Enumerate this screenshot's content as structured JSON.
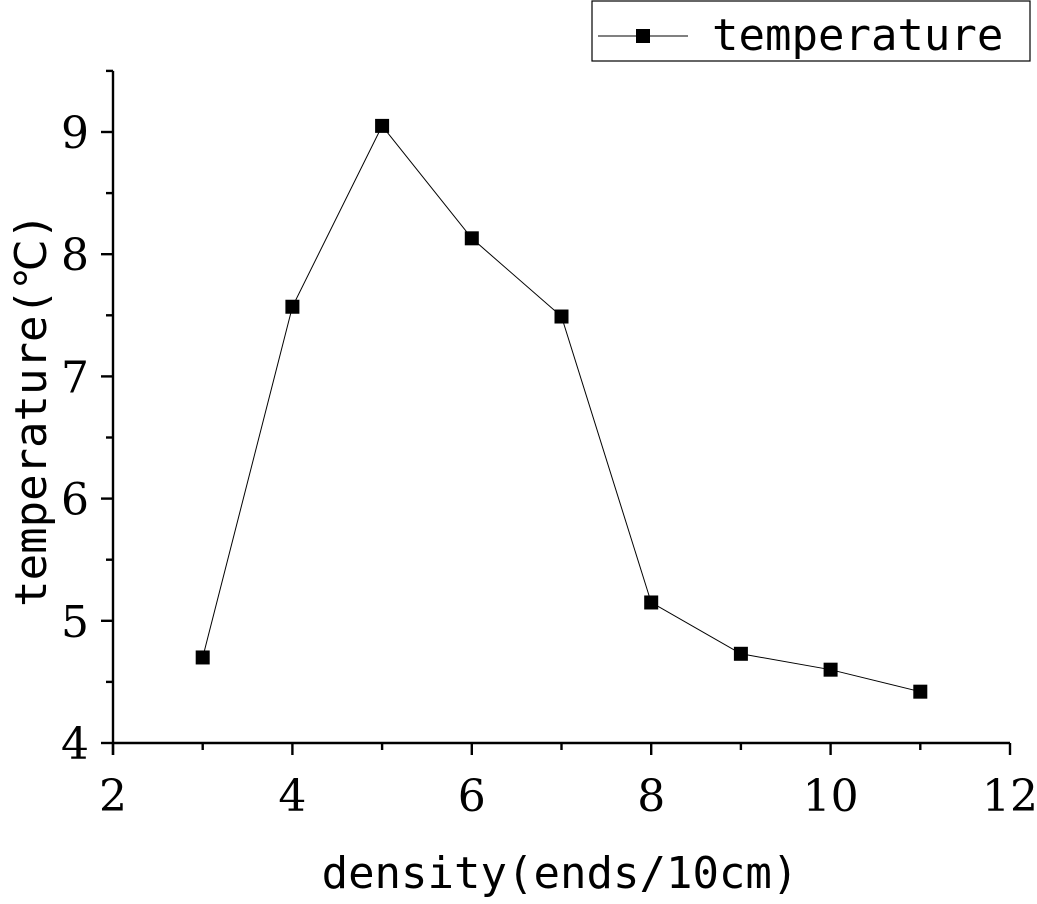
{
  "chart_data": {
    "type": "line",
    "title": "",
    "xlabel": "density(ends/10cm)",
    "ylabel": "temperature(℃)",
    "xlim": [
      2,
      12
    ],
    "ylim": [
      4,
      9.5
    ],
    "x_ticks": [
      2,
      4,
      6,
      8,
      10,
      12
    ],
    "y_ticks": [
      4,
      5,
      6,
      7,
      8,
      9
    ],
    "x_minor_ticks": [
      3,
      5,
      7,
      9,
      11
    ],
    "y_minor_ticks": [
      4.5,
      5.5,
      6.5,
      7.5,
      8.5,
      9.5
    ],
    "grid": false,
    "legend_position": "top-right",
    "x": [
      3,
      4,
      5,
      6,
      7,
      8,
      9,
      10,
      11
    ],
    "series": [
      {
        "name": "temperature",
        "marker": "square",
        "color": "#000000",
        "values": [
          4.7,
          7.57,
          9.05,
          8.13,
          7.49,
          5.15,
          4.73,
          4.6,
          4.42
        ]
      }
    ]
  },
  "legend": {
    "label": "temperature"
  },
  "colors": {
    "line": "#000000",
    "marker": "#000000",
    "axis": "#000000",
    "background": "#ffffff"
  }
}
